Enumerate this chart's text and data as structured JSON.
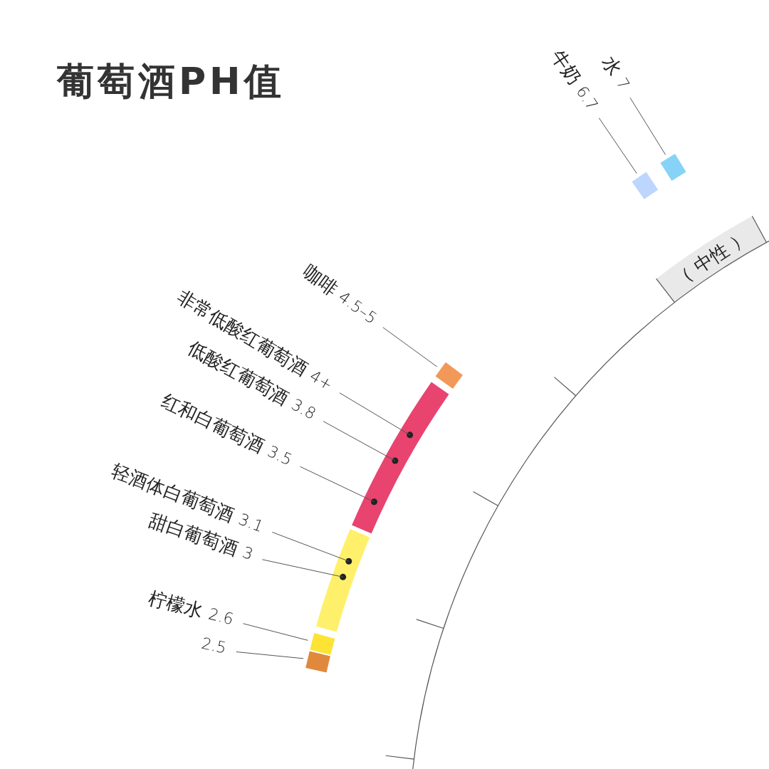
{
  "chart_data": {
    "type": "other",
    "title": "葡萄酒PH值",
    "categories": [
      "水",
      "牛奶",
      "咖啡",
      "非常低酸红葡萄酒",
      "低酸红葡萄酒",
      "红和白葡萄酒",
      "轻酒体白葡萄酒",
      "甜白葡萄酒",
      "柠檬水",
      null
    ],
    "values": [
      7,
      6.7,
      4.5,
      4,
      3.8,
      3.5,
      3.1,
      3,
      2.6,
      2.5
    ],
    "value_labels": [
      "7",
      "6.7",
      "4.5–5",
      "4+",
      "3.8",
      "3.5",
      "3.1",
      "3",
      "2.6",
      "2.5"
    ],
    "colors": [
      "#87d3f8",
      "#bdd6fd",
      "#f29858",
      "#e8446f",
      "#e8446f",
      "#e8446f",
      "#fff06b",
      "#fff06b",
      "#fde334",
      "#e0893d"
    ],
    "annotations": [
      "（ 中性 ）"
    ]
  }
}
